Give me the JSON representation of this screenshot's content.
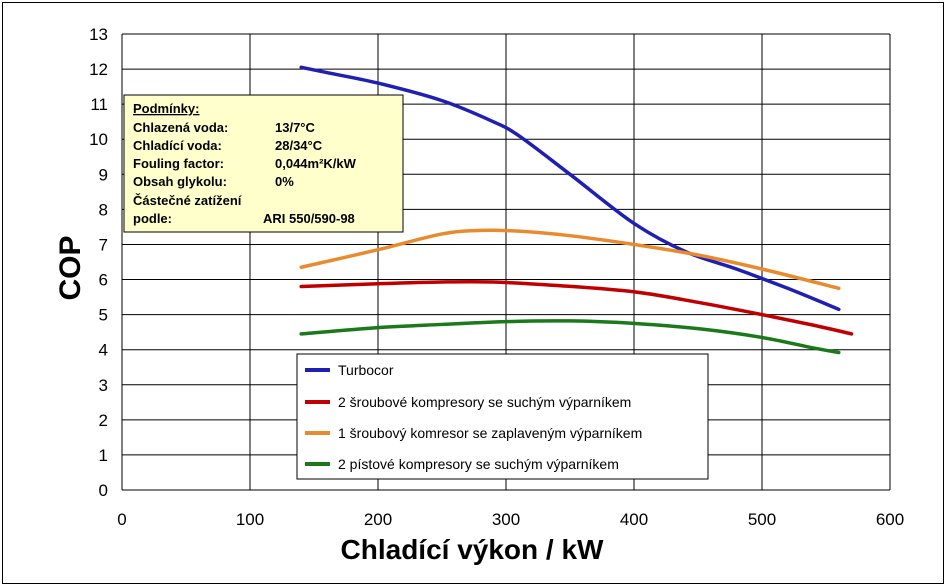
{
  "chart_data": {
    "type": "line",
    "xlabel": "Chladící výkon / kW",
    "ylabel": "COP",
    "xlim": [
      0,
      600
    ],
    "ylim": [
      0,
      13
    ],
    "xticks": [
      0,
      100,
      200,
      300,
      400,
      500,
      600
    ],
    "yticks": [
      0,
      1,
      2,
      3,
      4,
      5,
      6,
      7,
      8,
      9,
      10,
      11,
      12,
      13
    ],
    "grid": true,
    "legend_position": "bottom-center",
    "series": [
      {
        "name": "Turbocor",
        "color": "#1f1fb4",
        "x": [
          140,
          160,
          200,
          250,
          290,
          310,
          350,
          400,
          440,
          480,
          520,
          560
        ],
        "y": [
          12.05,
          11.9,
          11.6,
          11.1,
          10.5,
          10.1,
          9.0,
          7.6,
          6.8,
          6.3,
          5.75,
          5.15
        ]
      },
      {
        "name": "2 šroubové kompresory se suchým výparníkem",
        "color": "#c00000",
        "x": [
          140,
          200,
          250,
          290,
          340,
          400,
          450,
          500,
          540,
          570
        ],
        "y": [
          5.8,
          5.88,
          5.93,
          5.93,
          5.83,
          5.65,
          5.35,
          5.0,
          4.7,
          4.45
        ]
      },
      {
        "name": "1 šroubový komresor  se zaplaveným výparníkem",
        "color": "#e88b2e",
        "x": [
          140,
          200,
          250,
          280,
          310,
          350,
          400,
          450,
          500,
          560
        ],
        "y": [
          6.35,
          6.85,
          7.3,
          7.4,
          7.38,
          7.25,
          7.0,
          6.7,
          6.3,
          5.75
        ]
      },
      {
        "name": "2 pístové kompresory se suchým výparníkem",
        "color": "#1a7a1a",
        "x": [
          140,
          200,
          250,
          300,
          350,
          400,
          450,
          500,
          540,
          560
        ],
        "y": [
          4.45,
          4.63,
          4.72,
          4.8,
          4.82,
          4.75,
          4.6,
          4.35,
          4.05,
          3.92
        ]
      }
    ]
  },
  "conditions": {
    "heading": "Podmínky:",
    "rows": [
      {
        "label": "Chlazená voda:",
        "value": "13/7°C"
      },
      {
        "label": "Chladící voda:",
        "value": "28/34°C"
      },
      {
        "label": "Fouling factor:",
        "value": "0,044m²K/kW"
      },
      {
        "label": "Obsah glykolu:",
        "value": "0%"
      },
      {
        "label": "Částečné zatížení",
        "value": ""
      },
      {
        "label": "podle:",
        "value": "ARI 550/590-98"
      }
    ],
    "background": "#ffffcc"
  }
}
